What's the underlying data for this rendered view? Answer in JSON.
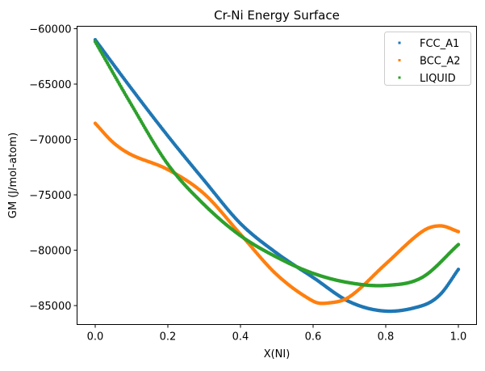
{
  "chart_data": {
    "type": "scatter",
    "title": "Cr-Ni Energy Surface",
    "xlabel": "X(NI)",
    "ylabel": "GM (J/mol-atom)",
    "xlim": [
      -0.05,
      1.05
    ],
    "ylim": [
      -86710,
      -59780
    ],
    "xticks": [
      0.0,
      0.2,
      0.4,
      0.6,
      0.8,
      1.0
    ],
    "xtick_labels": [
      "0.0",
      "0.2",
      "0.4",
      "0.6",
      "0.8",
      "1.0"
    ],
    "yticks": [
      -60000,
      -65000,
      -70000,
      -75000,
      -80000,
      -85000
    ],
    "ytick_labels": [
      "−60000",
      "−65000",
      "−70000",
      "−75000",
      "−80000",
      "−85000"
    ],
    "grid": false,
    "legend": "top-right",
    "series": [
      {
        "name": "FCC_A1",
        "color": "#1f77b4",
        "x": [
          0.0,
          0.1,
          0.2,
          0.3,
          0.4,
          0.5,
          0.6,
          0.7,
          0.8,
          0.9,
          0.95,
          1.0
        ],
        "y": [
          -61000,
          -65420,
          -69680,
          -73700,
          -77590,
          -80270,
          -82460,
          -84650,
          -85500,
          -85010,
          -84000,
          -81730
        ]
      },
      {
        "name": "BCC_A2",
        "color": "#ff7f0e",
        "x": [
          0.0,
          0.05,
          0.1,
          0.2,
          0.3,
          0.4,
          0.5,
          0.6,
          0.64,
          0.7,
          0.8,
          0.9,
          0.95,
          1.0
        ],
        "y": [
          -68540,
          -70290,
          -71390,
          -72720,
          -74910,
          -78560,
          -82210,
          -84600,
          -84770,
          -84210,
          -81240,
          -78320,
          -77800,
          -78320
        ]
      },
      {
        "name": "LIQUID",
        "color": "#2ca02c",
        "x": [
          0.0,
          0.1,
          0.2,
          0.3,
          0.4,
          0.5,
          0.6,
          0.7,
          0.8,
          0.9,
          1.0
        ],
        "y": [
          -61170,
          -66880,
          -72240,
          -75890,
          -78690,
          -80630,
          -82090,
          -82940,
          -83180,
          -82460,
          -79490
        ]
      }
    ]
  }
}
